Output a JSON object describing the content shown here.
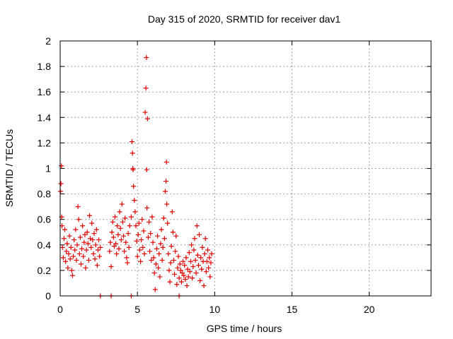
{
  "chart_data": {
    "type": "scatter",
    "title": "Day 315 of 2020, SRMTID for receiver dav1",
    "xlabel": "GPS time / hours",
    "ylabel": "SRMTID / TECUs",
    "xlim": [
      0,
      24
    ],
    "ylim": [
      0,
      2
    ],
    "xticks": [
      0,
      5,
      10,
      15,
      20
    ],
    "yticks": [
      0,
      0.2,
      0.4,
      0.6,
      0.8,
      1,
      1.2,
      1.4,
      1.6,
      1.8,
      2
    ],
    "ytick_labels": [
      "0",
      "0.2",
      "0.4",
      "0.6",
      "0.8",
      "1",
      "1.2",
      "1.4",
      "1.6",
      "1.8",
      "2"
    ],
    "grid": true,
    "marker": "+",
    "series_color": "#e00000",
    "series": [
      {
        "points": [
          [
            0.02,
            0.82
          ],
          [
            0.05,
            0.88
          ],
          [
            0.08,
            1.02
          ],
          [
            0.1,
            0.62
          ],
          [
            0.12,
            0.55
          ],
          [
            0.15,
            0.38
          ],
          [
            0.2,
            0.3
          ],
          [
            0.25,
            0.45
          ],
          [
            0.3,
            0.52
          ],
          [
            0.35,
            0.27
          ],
          [
            0.4,
            0.35
          ],
          [
            0.45,
            0.41
          ],
          [
            0.5,
            0.22
          ],
          [
            0.55,
            0.33
          ],
          [
            0.6,
            0.47
          ],
          [
            0.65,
            0.29
          ],
          [
            0.7,
            0.38
          ],
          [
            0.75,
            0.2
          ],
          [
            0.8,
            0.16
          ],
          [
            0.85,
            0.31
          ],
          [
            0.9,
            0.44
          ],
          [
            0.95,
            0.36
          ],
          [
            1.0,
            0.52
          ],
          [
            1.05,
            0.28
          ],
          [
            1.1,
            0.4
          ],
          [
            1.15,
            0.7
          ],
          [
            1.2,
            0.6
          ],
          [
            1.25,
            0.33
          ],
          [
            1.3,
            0.46
          ],
          [
            1.35,
            0.25
          ],
          [
            1.4,
            0.37
          ],
          [
            1.45,
            0.55
          ],
          [
            1.5,
            0.31
          ],
          [
            1.55,
            0.42
          ],
          [
            1.6,
            0.48
          ],
          [
            1.65,
            0.22
          ],
          [
            1.7,
            0.36
          ],
          [
            1.75,
            0.5
          ],
          [
            1.8,
            0.41
          ],
          [
            1.85,
            0.28
          ],
          [
            1.9,
            0.63
          ],
          [
            1.95,
            0.45
          ],
          [
            2.0,
            0.38
          ],
          [
            2.05,
            0.57
          ],
          [
            2.1,
            0.44
          ],
          [
            2.15,
            0.33
          ],
          [
            2.2,
            0.49
          ],
          [
            2.25,
            0.29
          ],
          [
            2.3,
            0.4
          ],
          [
            2.35,
            0.52
          ],
          [
            2.4,
            0.24
          ],
          [
            2.45,
            0.36
          ],
          [
            2.5,
            0.44
          ],
          [
            2.55,
            0.31
          ],
          [
            2.6,
            0.38
          ],
          [
            3.2,
            0.35
          ],
          [
            3.25,
            0.42
          ],
          [
            3.3,
            0.23
          ],
          [
            3.35,
            0.5
          ],
          [
            3.4,
            0.58
          ],
          [
            3.45,
            0.46
          ],
          [
            3.5,
            0.39
          ],
          [
            3.55,
            0.62
          ],
          [
            3.6,
            0.41
          ],
          [
            3.65,
            0.33
          ],
          [
            3.7,
            0.55
          ],
          [
            3.75,
            0.48
          ],
          [
            3.8,
            0.37
          ],
          [
            3.85,
            0.66
          ],
          [
            3.9,
            0.53
          ],
          [
            3.95,
            0.44
          ],
          [
            4.0,
            0.72
          ],
          [
            4.05,
            0.58
          ],
          [
            4.1,
            0.47
          ],
          [
            4.15,
            0.35
          ],
          [
            4.2,
            0.61
          ],
          [
            4.25,
            0.42
          ],
          [
            4.3,
            0.3
          ],
          [
            4.35,
            0.26
          ],
          [
            4.4,
            0.49
          ],
          [
            4.45,
            0.38
          ],
          [
            4.5,
            0.55
          ],
          [
            4.6,
            0.62
          ],
          [
            4.65,
            1.21
          ],
          [
            4.68,
            1.12
          ],
          [
            4.7,
            1.0
          ],
          [
            4.72,
            0.99
          ],
          [
            4.75,
            0.86
          ],
          [
            4.8,
            0.75
          ],
          [
            4.85,
            0.66
          ],
          [
            4.9,
            0.55
          ],
          [
            4.95,
            0.43
          ],
          [
            5.0,
            0.31
          ],
          [
            5.05,
            0.48
          ],
          [
            5.1,
            0.57
          ],
          [
            5.15,
            0.36
          ],
          [
            5.2,
            0.27
          ],
          [
            5.25,
            0.44
          ],
          [
            5.3,
            0.6
          ],
          [
            5.35,
            0.38
          ],
          [
            5.4,
            0.51
          ],
          [
            5.45,
            0.33
          ],
          [
            5.5,
            1.44
          ],
          [
            5.55,
            1.63
          ],
          [
            5.58,
            1.87
          ],
          [
            5.6,
            0.99
          ],
          [
            5.62,
            0.69
          ],
          [
            5.65,
            1.39
          ],
          [
            5.7,
            0.46
          ],
          [
            5.75,
            0.58
          ],
          [
            5.8,
            0.35
          ],
          [
            5.85,
            0.49
          ],
          [
            5.9,
            0.28
          ],
          [
            5.95,
            0.62
          ],
          [
            6.0,
            0.42
          ],
          [
            6.05,
            0.3
          ],
          [
            6.1,
            0.18
          ],
          [
            6.15,
            0.05
          ],
          [
            6.2,
            0.25
          ],
          [
            6.25,
            0.37
          ],
          [
            6.3,
            0.47
          ],
          [
            6.35,
            0.22
          ],
          [
            6.4,
            0.33
          ],
          [
            6.45,
            0.15
          ],
          [
            6.5,
            0.41
          ],
          [
            6.55,
            0.52
          ],
          [
            6.6,
            0.28
          ],
          [
            6.65,
            0.38
          ],
          [
            6.7,
            0.61
          ],
          [
            6.75,
            0.45
          ],
          [
            6.8,
            0.82
          ],
          [
            6.85,
            0.9
          ],
          [
            6.88,
            1.05
          ],
          [
            6.9,
            0.72
          ],
          [
            6.95,
            0.57
          ],
          [
            7.0,
            0.33
          ],
          [
            7.05,
            0.2
          ],
          [
            7.1,
            0.11
          ],
          [
            7.15,
            0.26
          ],
          [
            7.2,
            0.39
          ],
          [
            7.25,
            0.66
          ],
          [
            7.3,
            0.5
          ],
          [
            7.35,
            0.28
          ],
          [
            7.4,
            0.17
          ],
          [
            7.45,
            0.35
          ],
          [
            7.5,
            0.47
          ],
          [
            7.55,
            0.09
          ],
          [
            7.6,
            0.22
          ],
          [
            7.65,
            0.31
          ],
          [
            7.7,
            0.14
          ],
          [
            7.75,
            0.25
          ],
          [
            7.8,
            0.2
          ],
          [
            7.85,
            0.11
          ],
          [
            7.9,
            0.18
          ],
          [
            7.95,
            0.27
          ],
          [
            8.0,
            0.16
          ],
          [
            8.05,
            0.24
          ],
          [
            8.1,
            0.13
          ],
          [
            8.15,
            0.3
          ],
          [
            8.2,
            0.08
          ],
          [
            8.25,
            0.21
          ],
          [
            8.3,
            0.15
          ],
          [
            8.35,
            0.34
          ],
          [
            8.4,
            0.19
          ],
          [
            8.45,
            0.27
          ],
          [
            8.5,
            0.4
          ],
          [
            8.55,
            0.14
          ],
          [
            8.6,
            0.23
          ],
          [
            8.65,
            0.36
          ],
          [
            8.7,
            0.45
          ],
          [
            8.75,
            0.28
          ],
          [
            8.8,
            0.18
          ],
          [
            8.85,
            0.55
          ],
          [
            8.9,
            0.32
          ],
          [
            8.95,
            0.24
          ],
          [
            9.0,
            0.48
          ],
          [
            9.05,
            0.12
          ],
          [
            9.1,
            0.3
          ],
          [
            9.15,
            0.21
          ],
          [
            9.2,
            0.38
          ],
          [
            9.25,
            0.27
          ],
          [
            9.3,
            0.08
          ],
          [
            9.35,
            0.33
          ],
          [
            9.4,
            0.45
          ],
          [
            9.45,
            0.19
          ],
          [
            9.5,
            0.27
          ],
          [
            9.55,
            0.36
          ],
          [
            9.6,
            0.22
          ],
          [
            9.65,
            0.3
          ],
          [
            9.7,
            0.15
          ],
          [
            9.75,
            0.26
          ],
          [
            9.8,
            0.33
          ],
          [
            2.6,
            0.0
          ],
          [
            3.3,
            0.0
          ],
          [
            4.6,
            0.0
          ],
          [
            7.7,
            0.0
          ]
        ]
      }
    ]
  }
}
